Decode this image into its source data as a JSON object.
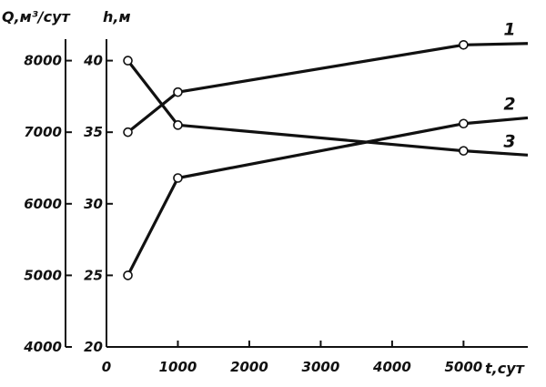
{
  "chart_data": {
    "type": "line",
    "title": "",
    "xlabel": "t,сут",
    "ylabel_left": "Q,м³/сут",
    "ylabel_right": "h,м",
    "xlim": [
      0,
      5900
    ],
    "ylim_left": [
      4000,
      8300
    ],
    "ylim_right": [
      20,
      41.5
    ],
    "x_ticks": [
      "0",
      "1000",
      "2000",
      "3000",
      "4000",
      "5000"
    ],
    "y_left_ticks": [
      "4000",
      "5000",
      "6000",
      "7000",
      "8000"
    ],
    "y_right_ticks": [
      "20",
      "25",
      "30",
      "35",
      "40"
    ],
    "grid": false,
    "series": [
      {
        "name": "1",
        "axis": "h",
        "x": [
          300,
          1000,
          5000,
          5900
        ],
        "y": [
          35,
          37.8,
          41.1,
          41.2
        ],
        "markers": [
          true,
          true,
          true,
          false
        ]
      },
      {
        "name": "2",
        "axis": "h",
        "x": [
          300,
          1000,
          5000,
          5900
        ],
        "y": [
          25,
          31.8,
          35.6,
          36.0
        ],
        "markers": [
          true,
          true,
          true,
          false
        ]
      },
      {
        "name": "3",
        "axis": "h",
        "x": [
          300,
          1000,
          5000,
          5900
        ],
        "y": [
          40,
          35.5,
          33.7,
          33.4
        ],
        "markers": [
          true,
          true,
          true,
          false
        ]
      }
    ]
  }
}
